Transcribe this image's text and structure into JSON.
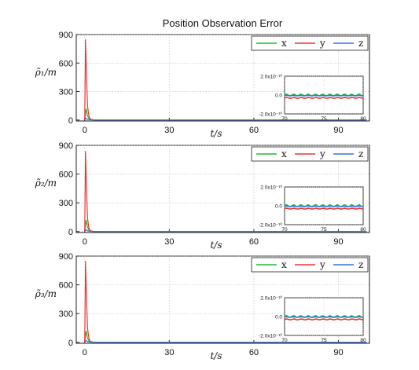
{
  "title": "Position Observation Error",
  "colors": {
    "x": "#22bb33",
    "y": "#ee3333",
    "z": "#3377dd"
  },
  "chart_data": [
    {
      "type": "line",
      "ylabel": "ρ̃₁/m",
      "xlabel": "t/s",
      "xlim": [
        -3,
        101
      ],
      "ylim": [
        -10,
        900
      ],
      "xticks": [
        0,
        30,
        60,
        90
      ],
      "yticks": [
        0,
        300,
        600,
        900
      ],
      "grid": true,
      "legend_position": "top-right",
      "series": [
        {
          "name": "x",
          "x": [
            0,
            0.5,
            1,
            1.5,
            2,
            3,
            5,
            100
          ],
          "y": [
            0,
            120,
            45,
            15,
            5,
            1,
            0,
            0
          ]
        },
        {
          "name": "y",
          "x": [
            0,
            0.3,
            0.6,
            1,
            1.5,
            2,
            3,
            5,
            100
          ],
          "y": [
            0,
            850,
            500,
            150,
            40,
            10,
            2,
            0,
            0
          ]
        },
        {
          "name": "z",
          "x": [
            0,
            0.5,
            1,
            2,
            5,
            100
          ],
          "y": [
            0,
            20,
            8,
            2,
            0,
            0
          ]
        }
      ],
      "inset": {
        "xlim": [
          70,
          80
        ],
        "ylim": [
          -2e-10,
          2e-10
        ],
        "xticks": [
          70,
          75,
          80
        ],
        "ytick_labels": [
          "2.0x10⁻¹⁰",
          "0.0",
          "-2.0x10⁻¹⁰"
        ],
        "series": [
          {
            "name": "x",
            "level": 0.0,
            "ripple": 1e-11
          },
          {
            "name": "y",
            "level": -3e-11,
            "ripple": 5e-12
          },
          {
            "name": "z",
            "level": -5e-12,
            "ripple": 3e-12
          }
        ]
      }
    },
    {
      "type": "line",
      "ylabel": "ρ̃₂/m",
      "xlabel": "t/s",
      "xlim": [
        -3,
        101
      ],
      "ylim": [
        -10,
        900
      ],
      "xticks": [
        0,
        30,
        60,
        90
      ],
      "yticks": [
        0,
        300,
        600,
        900
      ],
      "grid": true,
      "legend_position": "top-right",
      "series": [
        {
          "name": "x",
          "x": [
            0,
            0.5,
            1,
            1.5,
            2,
            3,
            5,
            100
          ],
          "y": [
            0,
            120,
            45,
            15,
            5,
            1,
            0,
            0
          ]
        },
        {
          "name": "y",
          "x": [
            0,
            0.3,
            0.6,
            1,
            1.5,
            2,
            3,
            5,
            100
          ],
          "y": [
            0,
            840,
            480,
            140,
            35,
            8,
            2,
            0,
            0
          ]
        },
        {
          "name": "z",
          "x": [
            0,
            0.5,
            1,
            2,
            5,
            100
          ],
          "y": [
            0,
            20,
            8,
            2,
            0,
            0
          ]
        }
      ],
      "inset": {
        "xlim": [
          70,
          80
        ],
        "ylim": [
          -2e-10,
          2e-10
        ],
        "xticks": [
          70,
          75,
          80
        ],
        "ytick_labels": [
          "2.0x10⁻¹⁰",
          "0.0",
          "-2.0x10⁻¹⁰"
        ],
        "series": [
          {
            "name": "x",
            "level": 0.0,
            "ripple": 1.2e-11
          },
          {
            "name": "y",
            "level": -3e-11,
            "ripple": 5e-12
          },
          {
            "name": "z",
            "level": -5e-12,
            "ripple": 3e-12
          }
        ]
      }
    },
    {
      "type": "line",
      "ylabel": "ρ̃₃/m",
      "xlabel": "t/s",
      "xlim": [
        -3,
        101
      ],
      "ylim": [
        -10,
        900
      ],
      "xticks": [
        0,
        30,
        60,
        90
      ],
      "yticks": [
        0,
        300,
        600,
        900
      ],
      "grid": true,
      "legend_position": "top-right",
      "series": [
        {
          "name": "x",
          "x": [
            0,
            0.5,
            1,
            1.5,
            2,
            3,
            5,
            100
          ],
          "y": [
            0,
            120,
            45,
            15,
            5,
            1,
            0,
            0
          ]
        },
        {
          "name": "y",
          "x": [
            0,
            0.3,
            0.6,
            1,
            1.5,
            2,
            3,
            5,
            100
          ],
          "y": [
            0,
            850,
            500,
            150,
            40,
            10,
            2,
            0,
            0
          ]
        },
        {
          "name": "z",
          "x": [
            0,
            0.5,
            1,
            2,
            5,
            100
          ],
          "y": [
            0,
            20,
            8,
            2,
            0,
            0
          ]
        }
      ],
      "inset": {
        "xlim": [
          70,
          80
        ],
        "ylim": [
          -2e-10,
          2e-10
        ],
        "xticks": [
          70,
          75,
          80
        ],
        "ytick_labels": [
          "2.0x10⁻¹⁰",
          "0.0",
          "-2.0x10⁻¹⁰"
        ],
        "series": [
          {
            "name": "x",
            "level": 0.0,
            "ripple": 1e-11
          },
          {
            "name": "y",
            "level": -3e-11,
            "ripple": 5e-12
          },
          {
            "name": "z",
            "level": -5e-12,
            "ripple": 3e-12
          }
        ]
      }
    }
  ]
}
